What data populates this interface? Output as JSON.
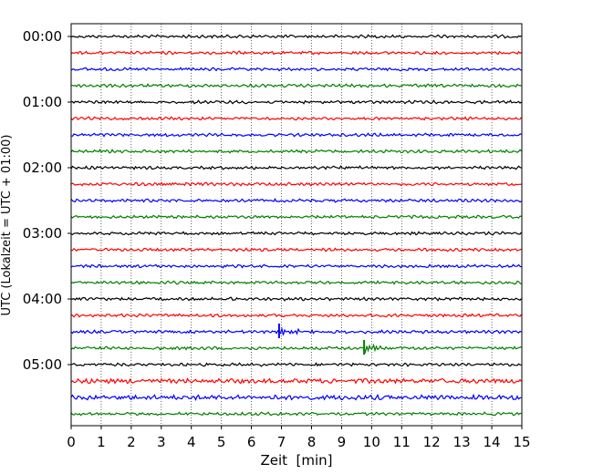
{
  "chart_data": {
    "type": "line",
    "kind": "helicorder",
    "xlabel": "Zeit  [min]",
    "ylabel": "UTC (Lokalzeit = UTC + 01:00)",
    "xlim": [
      0,
      15
    ],
    "x_ticks": [
      "0",
      "1",
      "2",
      "3",
      "4",
      "5",
      "6",
      "7",
      "8",
      "9",
      "10",
      "11",
      "12",
      "13",
      "14",
      "15"
    ],
    "y_ticks": [
      "00:00",
      "01:00",
      "02:00",
      "03:00",
      "04:00",
      "05:00"
    ],
    "traces_per_hour": 4,
    "trace_colors": [
      "#000000",
      "#ff0000",
      "#0000ff",
      "#008000"
    ],
    "grid_x": true,
    "noisy_traces": [
      21,
      22
    ],
    "events": [
      {
        "trace": 18,
        "minute": 6.92,
        "label": ""
      },
      {
        "trace": 19,
        "minute": 9.75,
        "label": ""
      }
    ],
    "traces": [
      {
        "start": "00:00"
      },
      {
        "start": "00:15"
      },
      {
        "start": "00:30"
      },
      {
        "start": "00:45"
      },
      {
        "start": "01:00"
      },
      {
        "start": "01:15"
      },
      {
        "start": "01:30"
      },
      {
        "start": "01:45"
      },
      {
        "start": "02:00"
      },
      {
        "start": "02:15"
      },
      {
        "start": "02:30"
      },
      {
        "start": "02:45"
      },
      {
        "start": "03:00"
      },
      {
        "start": "03:15"
      },
      {
        "start": "03:30"
      },
      {
        "start": "03:45"
      },
      {
        "start": "04:00"
      },
      {
        "start": "04:15"
      },
      {
        "start": "04:30"
      },
      {
        "start": "04:45"
      },
      {
        "start": "05:00"
      },
      {
        "start": "05:15"
      },
      {
        "start": "05:30"
      },
      {
        "start": "05:45"
      }
    ]
  }
}
